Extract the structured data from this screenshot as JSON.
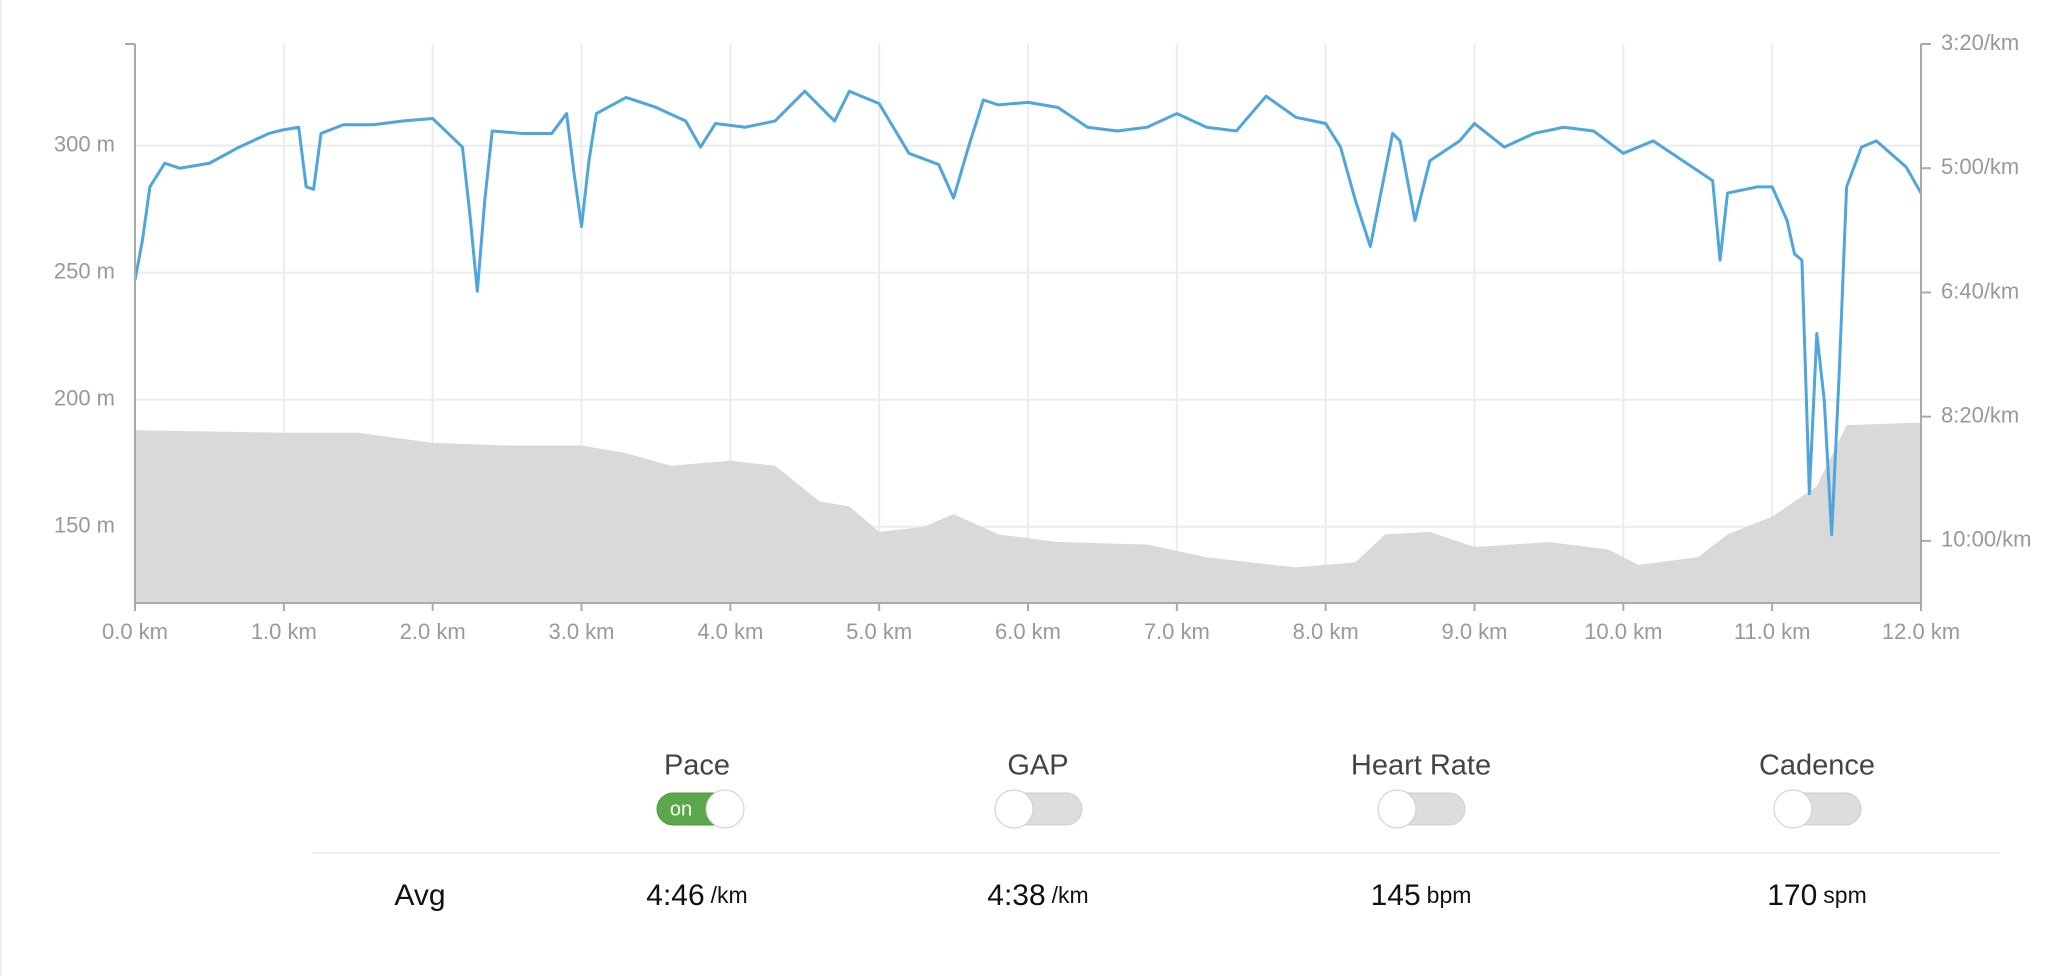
{
  "chart_data": {
    "type": "line",
    "xlim": [
      0,
      12
    ],
    "xticks": [
      {
        "value": 0,
        "label": "0.0 km"
      },
      {
        "value": 1,
        "label": "1.0 km"
      },
      {
        "value": 2,
        "label": "2.0 km"
      },
      {
        "value": 3,
        "label": "3.0 km"
      },
      {
        "value": 4,
        "label": "4.0 km"
      },
      {
        "value": 5,
        "label": "5.0 km"
      },
      {
        "value": 6,
        "label": "6.0 km"
      },
      {
        "value": 7,
        "label": "7.0 km"
      },
      {
        "value": 8,
        "label": "8.0 km"
      },
      {
        "value": 9,
        "label": "9.0 km"
      },
      {
        "value": 10,
        "label": "10.0 km"
      },
      {
        "value": 11,
        "label": "11.0 km"
      },
      {
        "value": 12,
        "label": "12.0 km"
      }
    ],
    "ylim": [
      120,
      340
    ],
    "yticks": [
      {
        "value": 150,
        "label": "150 m"
      },
      {
        "value": 200,
        "label": "200 m"
      },
      {
        "value": 250,
        "label": "250 m"
      },
      {
        "value": 300,
        "label": "300 m"
      }
    ],
    "y2lim": [
      650,
      200
    ],
    "y2ticks": [
      {
        "value": 200,
        "label": "3:20/km"
      },
      {
        "value": 300,
        "label": "5:00/km"
      },
      {
        "value": 400,
        "label": "6:40/km"
      },
      {
        "value": 500,
        "label": "8:20/km"
      },
      {
        "value": 600,
        "label": "10:00/km"
      }
    ],
    "grid": true,
    "series": [
      {
        "type": "area",
        "color": "#d9d9d9",
        "x": [
          0,
          1.0,
          1.5,
          2.0,
          2.5,
          3.0,
          3.3,
          3.6,
          4.0,
          4.3,
          4.6,
          4.8,
          5.0,
          5.3,
          5.5,
          5.8,
          6.2,
          6.8,
          7.2,
          7.8,
          8.2,
          8.4,
          8.7,
          9.0,
          9.5,
          9.9,
          10.1,
          10.5,
          10.7,
          11.0,
          11.3,
          11.5,
          12.0
        ],
        "values": [
          188,
          187,
          187,
          183,
          182,
          182,
          179,
          174,
          176,
          174,
          160,
          158,
          148,
          150,
          155,
          147,
          144,
          143,
          138,
          134,
          136,
          147,
          148,
          142,
          144,
          141,
          135,
          138,
          147,
          154,
          166,
          190,
          191
        ]
      },
      {
        "type": "line",
        "color": "#4ea6dc",
        "axis": "y2",
        "x": [
          0.0,
          0.05,
          0.1,
          0.2,
          0.3,
          0.5,
          0.7,
          0.9,
          1.0,
          1.1,
          1.15,
          1.2,
          1.25,
          1.4,
          1.6,
          1.8,
          2.0,
          2.2,
          2.25,
          2.3,
          2.35,
          2.4,
          2.6,
          2.8,
          2.9,
          2.95,
          3.0,
          3.05,
          3.1,
          3.3,
          3.5,
          3.7,
          3.8,
          3.9,
          4.1,
          4.3,
          4.5,
          4.7,
          4.8,
          5.0,
          5.2,
          5.4,
          5.5,
          5.6,
          5.7,
          5.8,
          6.0,
          6.2,
          6.4,
          6.6,
          6.8,
          7.0,
          7.2,
          7.4,
          7.6,
          7.8,
          8.0,
          8.1,
          8.2,
          8.3,
          8.45,
          8.5,
          8.6,
          8.7,
          8.9,
          9.0,
          9.2,
          9.4,
          9.6,
          9.8,
          10.0,
          10.2,
          10.4,
          10.6,
          10.65,
          10.7,
          10.9,
          11.0,
          11.1,
          11.15,
          11.2,
          11.25,
          11.3,
          11.35,
          11.4,
          11.45,
          11.5,
          11.6,
          11.7,
          11.9,
          12.0
        ],
        "values": [
          390,
          358,
          315,
          296,
          300,
          296,
          283,
          272,
          269,
          267,
          315,
          317,
          272,
          265,
          265,
          262,
          260,
          283,
          337,
          399,
          326,
          270,
          272,
          272,
          256,
          304,
          347,
          294,
          256,
          243,
          251,
          262,
          283,
          264,
          267,
          262,
          238,
          262,
          238,
          248,
          288,
          297,
          324,
          283,
          245,
          249,
          247,
          251,
          267,
          270,
          267,
          256,
          267,
          270,
          242,
          259,
          264,
          283,
          326,
          363,
          272,
          278,
          342,
          294,
          278,
          264,
          283,
          272,
          267,
          270,
          288,
          278,
          294,
          310,
          374,
          320,
          315,
          315,
          342,
          369,
          374,
          562,
          433,
          487,
          595,
          466,
          315,
          283,
          278,
          299,
          320
        ]
      }
    ]
  },
  "metrics": {
    "avg_label": "Avg",
    "items": [
      {
        "label": "Pace",
        "enabled": true,
        "toggle_text": "on",
        "avg": "4:46",
        "unit": "/km"
      },
      {
        "label": "GAP",
        "enabled": false,
        "avg": "4:38",
        "unit": "/km"
      },
      {
        "label": "Heart Rate",
        "enabled": false,
        "avg": "145",
        "unit": "bpm"
      },
      {
        "label": "Cadence",
        "enabled": false,
        "avg": "170",
        "unit": "spm"
      }
    ]
  }
}
